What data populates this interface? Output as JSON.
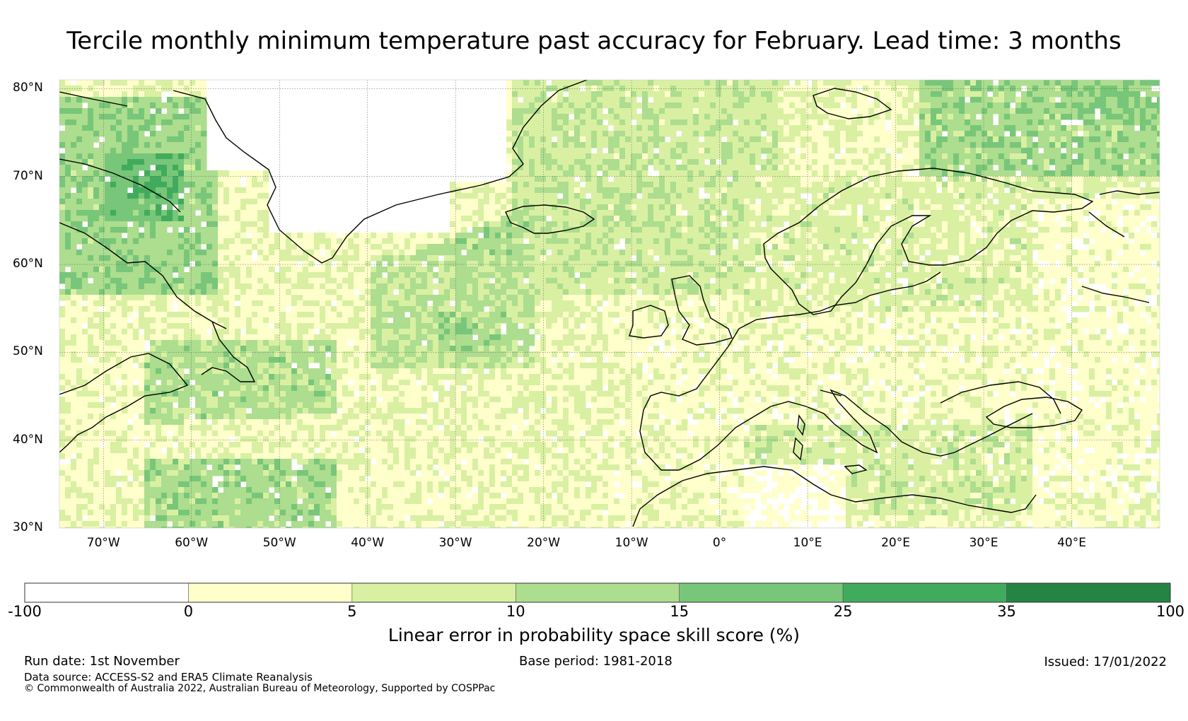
{
  "title": "Tercile monthly minimum temperature past accuracy for February. Lead time: 3 months",
  "map": {
    "lon_range": [
      -75,
      50
    ],
    "lat_range": [
      30,
      81
    ],
    "lat_ticks": [
      {
        "value": 80,
        "label": "80°N"
      },
      {
        "value": 70,
        "label": "70°N"
      },
      {
        "value": 60,
        "label": "60°N"
      },
      {
        "value": 50,
        "label": "50°N"
      },
      {
        "value": 40,
        "label": "40°N"
      },
      {
        "value": 30,
        "label": "30°N"
      }
    ],
    "lon_ticks": [
      {
        "value": -70,
        "label": "70°W"
      },
      {
        "value": -60,
        "label": "60°W"
      },
      {
        "value": -50,
        "label": "50°W"
      },
      {
        "value": -40,
        "label": "40°W"
      },
      {
        "value": -30,
        "label": "30°W"
      },
      {
        "value": -20,
        "label": "20°W"
      },
      {
        "value": -10,
        "label": "10°W"
      },
      {
        "value": 0,
        "label": "0°"
      },
      {
        "value": 10,
        "label": "10°E"
      },
      {
        "value": 20,
        "label": "20°E"
      },
      {
        "value": 30,
        "label": "30°E"
      },
      {
        "value": 40,
        "label": "40°E"
      }
    ]
  },
  "colorbar": {
    "label": "Linear error in probability space skill score (%)",
    "bins": [
      {
        "from": -100,
        "to": 0,
        "color": "#ffffff"
      },
      {
        "from": 0,
        "to": 5,
        "color": "#ffffcc"
      },
      {
        "from": 5,
        "to": 10,
        "color": "#d9f0a3"
      },
      {
        "from": 10,
        "to": 15,
        "color": "#addd8e"
      },
      {
        "from": 15,
        "to": 25,
        "color": "#78c679"
      },
      {
        "from": 25,
        "to": 35,
        "color": "#41ab5d"
      },
      {
        "from": 35,
        "to": 100,
        "color": "#238443"
      }
    ],
    "tick_labels": [
      "-100",
      "0",
      "5",
      "10",
      "15",
      "25",
      "35",
      "100"
    ]
  },
  "footer": {
    "run_date": "Run date: 1st November",
    "base_period": "Base period: 1981-2018",
    "issued": "Issued: 17/01/2022",
    "data_source": "Data source: ACCESS-S2 and ERA5 Climate Reanalysis",
    "copyright": "© Commonwealth of Australia 2022, Australian Bureau of Meteorology, Supported by COSPPac"
  }
}
